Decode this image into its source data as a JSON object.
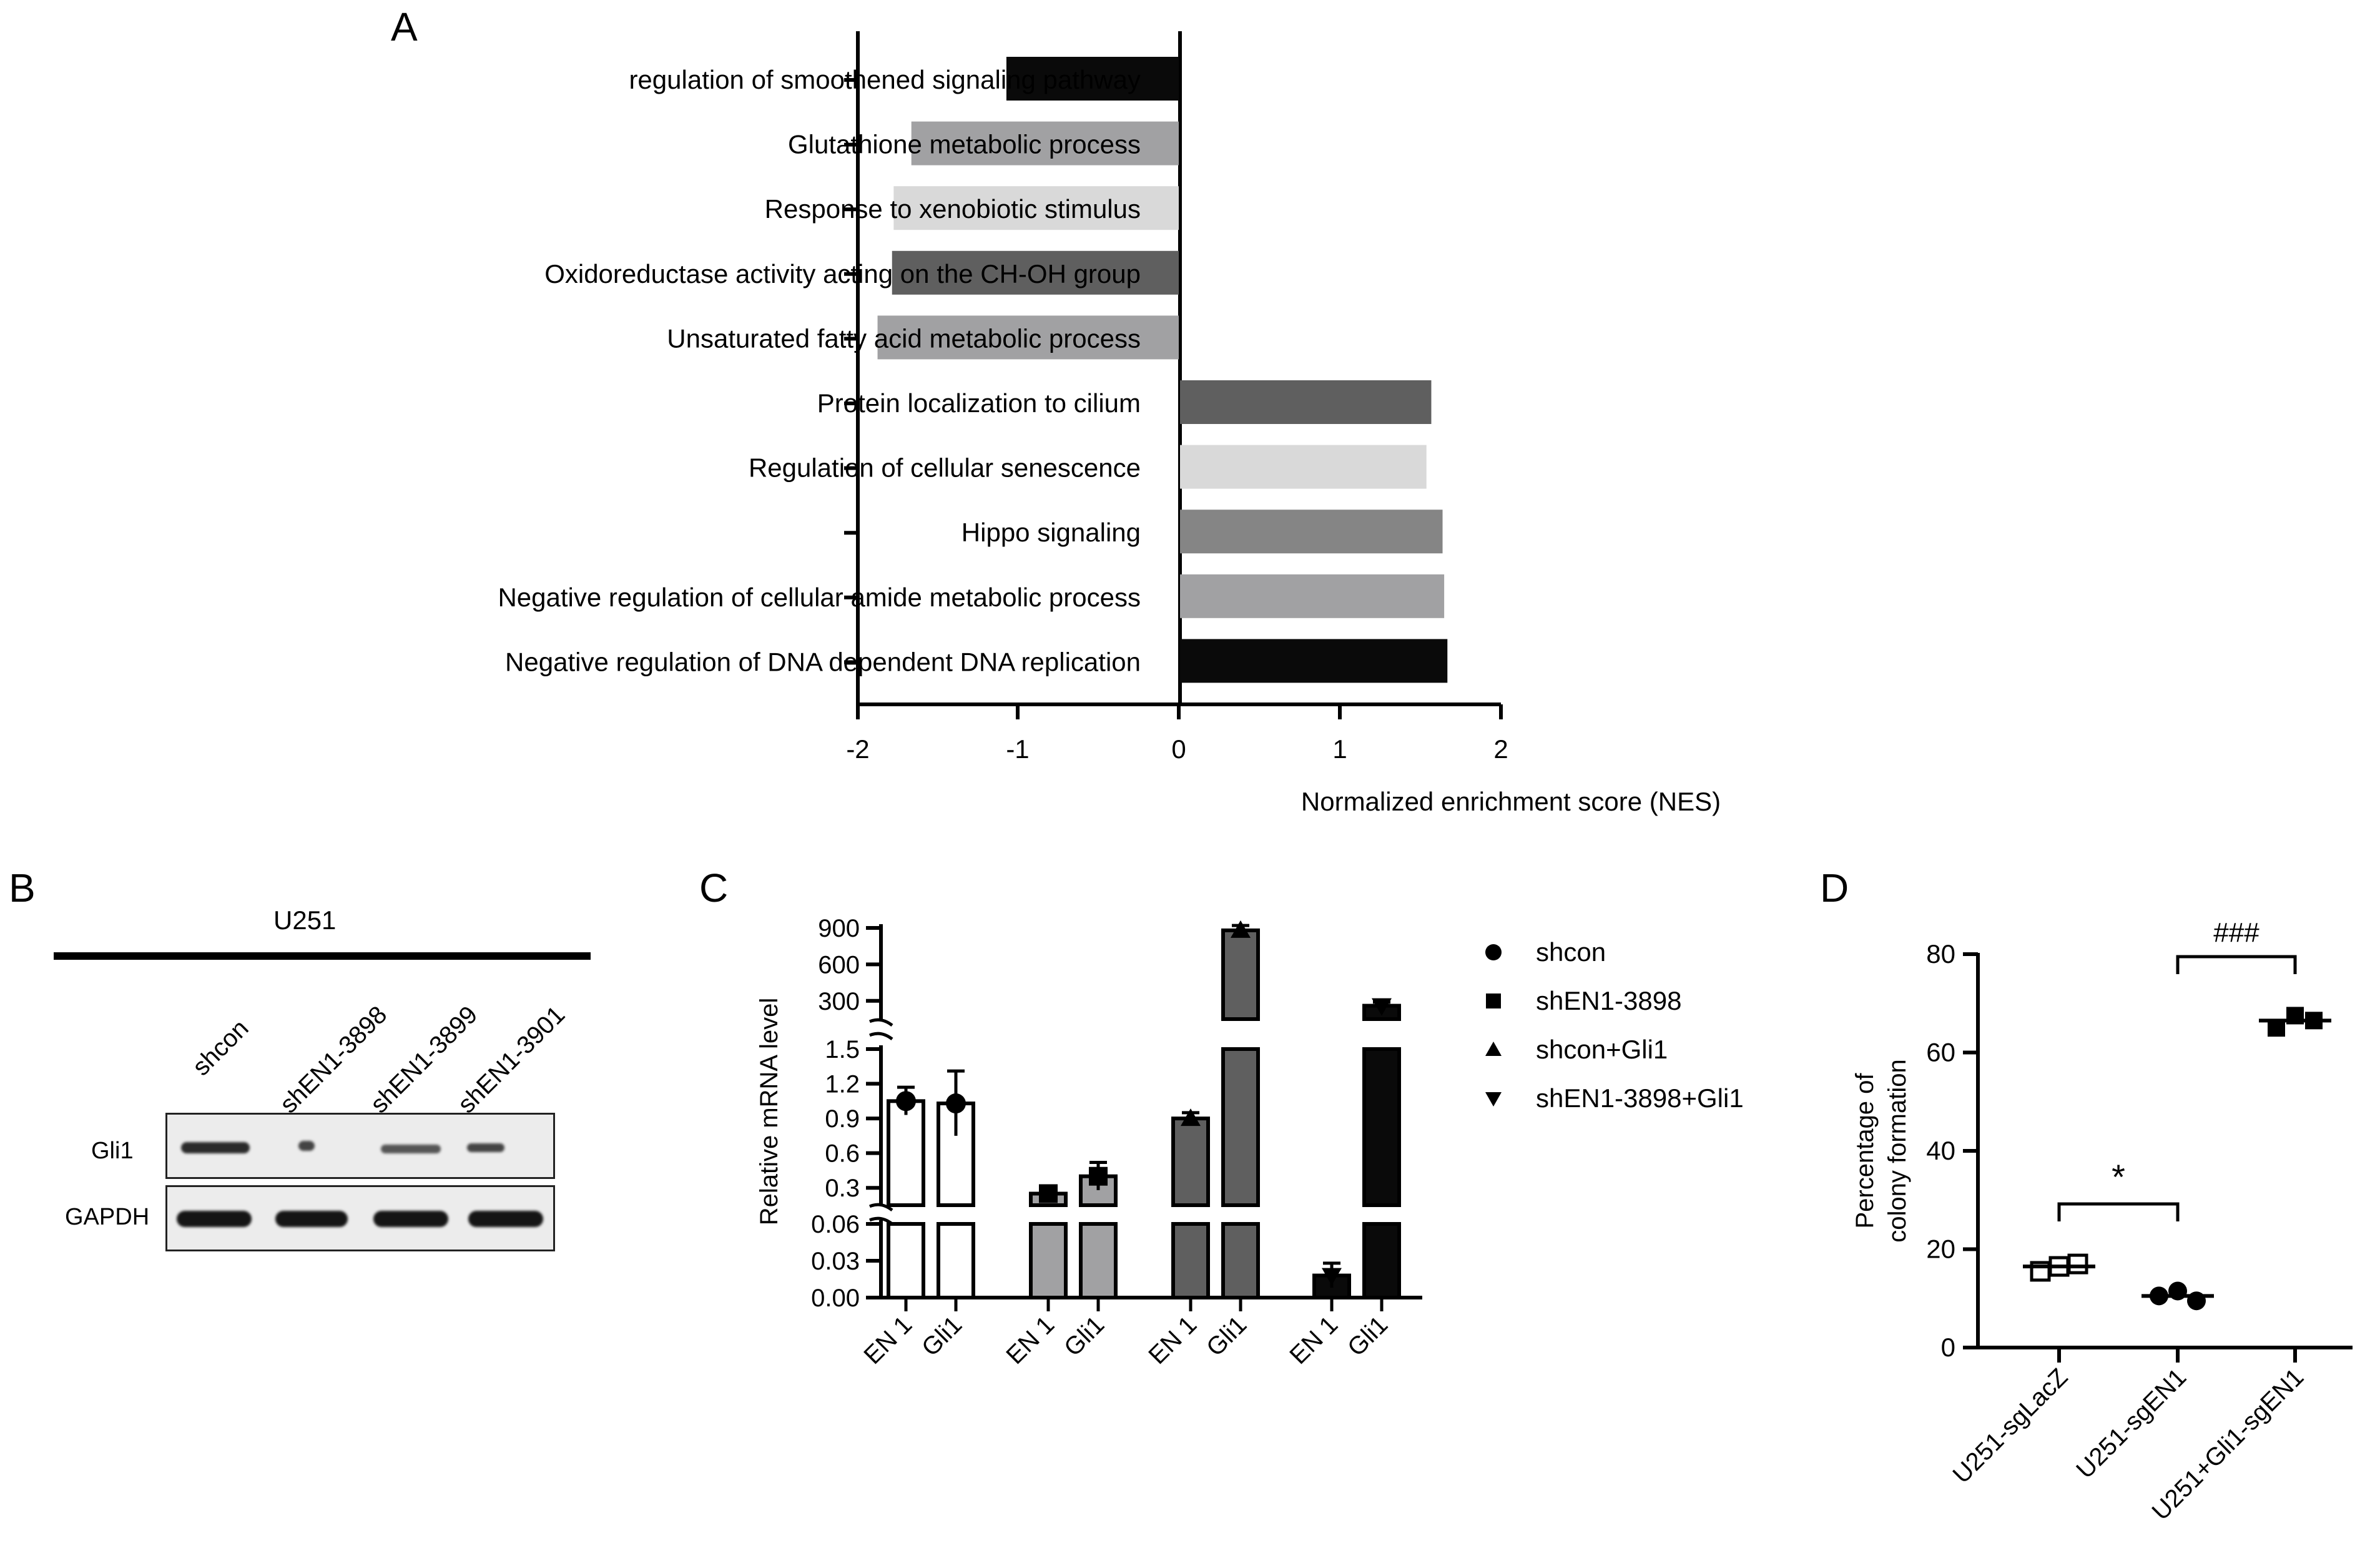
{
  "panels": {
    "a": "A",
    "b": "B",
    "c": "C",
    "d": "D"
  },
  "chart_data": [
    {
      "type": "bar",
      "panel": "A",
      "orientation": "horizontal",
      "categories": [
        "regulation of smoothened signaling pathway",
        "Glutathione metabolic process",
        "Response to xenobiotic stimulus",
        "Oxidoreductase activity acting on the CH-OH group",
        "Unsaturated fatty acid metabolic process",
        "Protein localization to cilium",
        "Regulation of cellular senescence",
        "Hippo signaling",
        "Negative regulation of cellular amide metabolic process",
        "Negative regulation of DNA dependent DNA replication"
      ],
      "values": [
        -1.07,
        -1.66,
        -1.77,
        -1.78,
        -1.87,
        1.56,
        1.53,
        1.63,
        1.64,
        1.66
      ],
      "colors": [
        "#0a0a0a",
        "#a1a1a3",
        "#d9d9d9",
        "#5f5f5f",
        "#a1a1a3",
        "#5f5f5f",
        "#d9d9d9",
        "#858585",
        "#a1a1a3",
        "#0a0a0a"
      ],
      "xlabel": "Normalized enrichment score (NES)",
      "xlim": [
        -2,
        2
      ],
      "xticks": [
        "-2",
        "-1",
        "0",
        "1",
        "2"
      ]
    },
    {
      "type": "bar",
      "panel": "C",
      "ylabel": "Relative mRNA level",
      "categories": [
        "EN 1",
        "Gli1",
        "EN 1",
        "Gli1",
        "EN 1",
        "Gli1",
        "EN 1",
        "Gli1"
      ],
      "groups": [
        {
          "name": "shcon",
          "marker": "circle",
          "fill": "#ffffff",
          "values": [
            1.05,
            1.03
          ],
          "errors": [
            0.12,
            0.28
          ]
        },
        {
          "name": "shEN1-3898",
          "marker": "square",
          "fill": "#a1a1a3",
          "values": [
            0.25,
            0.4
          ],
          "errors": [
            0.04,
            0.12
          ]
        },
        {
          "name": "shcon+Gli1",
          "marker": "triangle-up",
          "fill": "#5f5f5f",
          "values": [
            0.9,
            880
          ],
          "errors": [
            0.05,
            40
          ]
        },
        {
          "name": "shEN1-3898+Gli1",
          "marker": "triangle-down",
          "fill": "#0a0a0a",
          "values": [
            0.018,
            260
          ],
          "errors": [
            0.01,
            30
          ]
        }
      ],
      "broken_axis_segments": [
        {
          "range": [
            0,
            0.06
          ],
          "ticks": [
            "0.00",
            "0.03",
            "0.06"
          ]
        },
        {
          "range": [
            0.15,
            1.5
          ],
          "ticks": [
            "0.3",
            "0.6",
            "0.9",
            "1.2",
            "1.5"
          ]
        },
        {
          "range": [
            150,
            900
          ],
          "ticks": [
            "300",
            "600",
            "900"
          ]
        }
      ]
    },
    {
      "type": "scatter",
      "panel": "D",
      "ylabel_lines": [
        "Percentage of",
        "colony formation"
      ],
      "categories": [
        "U251-sgLacZ",
        "U251-sgEN1",
        "U251+Gli1-sgEN1"
      ],
      "ylim": [
        0,
        80
      ],
      "yticks": [
        "0",
        "20",
        "40",
        "60",
        "80"
      ],
      "groups": [
        {
          "name": "U251-sgLacZ",
          "marker": "open-square",
          "points": [
            15.5,
            16.5,
            17
          ],
          "mean": 16.5
        },
        {
          "name": "U251-sgEN1",
          "marker": "circle",
          "points": [
            10.5,
            11.5,
            9.5
          ],
          "mean": 10.5
        },
        {
          "name": "U251+Gli1-sgEN1",
          "marker": "filled-square",
          "points": [
            65,
            67.5,
            66.5
          ],
          "mean": 66.5
        }
      ],
      "annotations": [
        {
          "from": "U251-sgLacZ",
          "to": "U251-sgEN1",
          "label": "*"
        },
        {
          "from": "U251-sgEN1",
          "to": "U251+Gli1-sgEN1",
          "label": "###"
        }
      ]
    }
  ],
  "blot": {
    "title": "U251",
    "lanes": [
      "shcon",
      "shEN1-3898",
      "shEN1-3899",
      "shEN1-3901"
    ],
    "rows": [
      "Gli1",
      "GAPDH"
    ]
  }
}
